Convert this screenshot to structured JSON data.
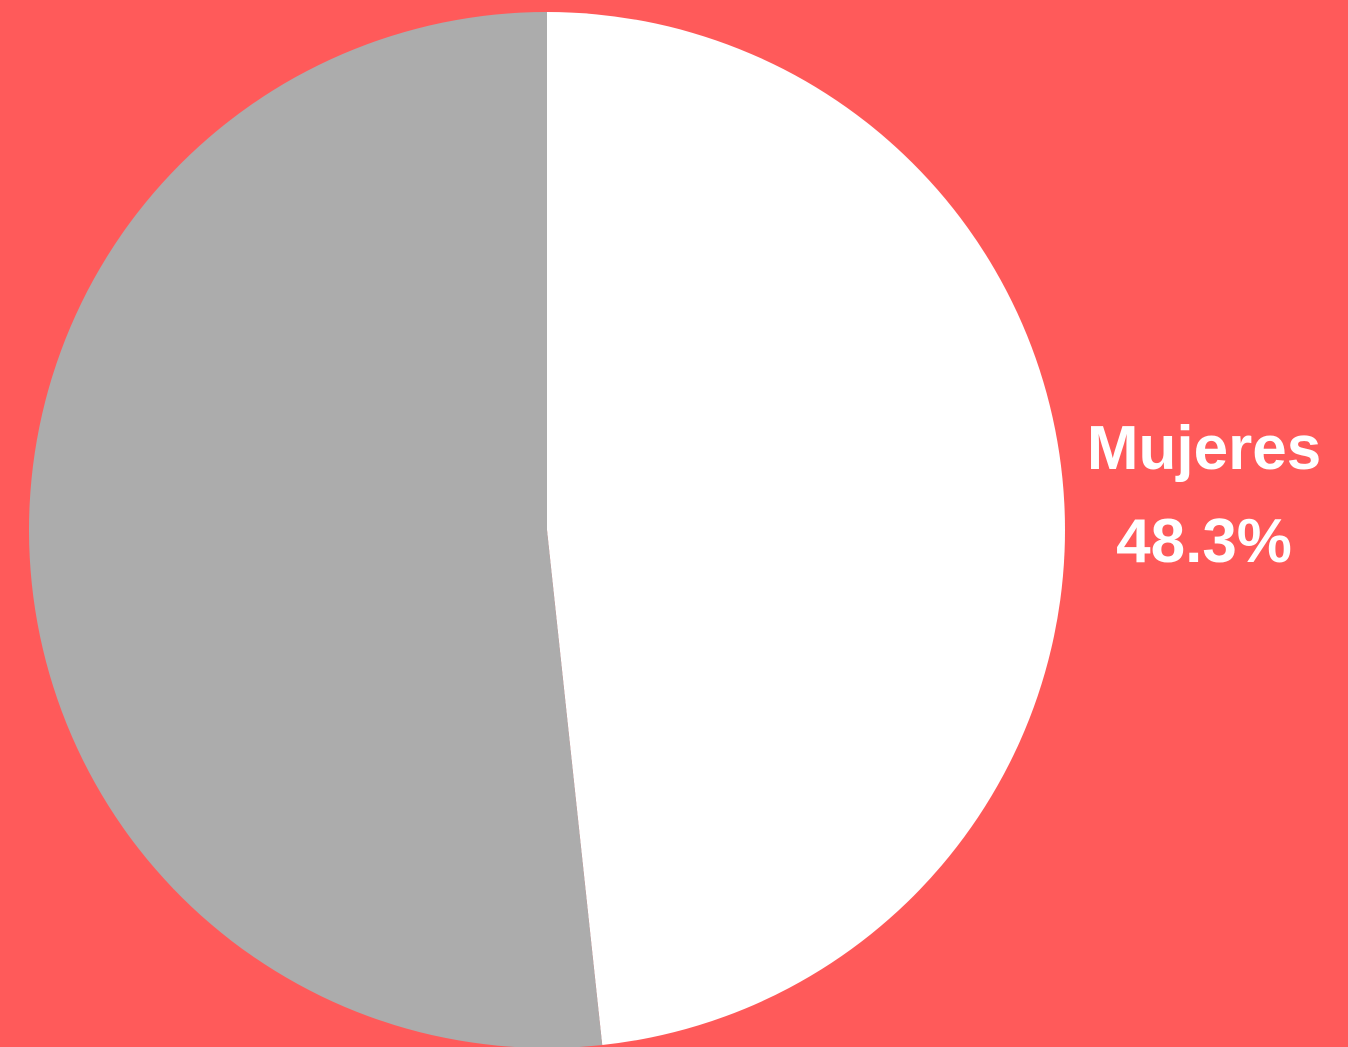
{
  "chart_data": {
    "type": "pie",
    "categories": [
      "Mujeres",
      null
    ],
    "values": [
      48.3,
      51.7
    ],
    "value_labels": [
      "48.3%",
      null
    ],
    "colors": [
      "#ffffff",
      "#acacac"
    ],
    "background": "#ff5a5a"
  }
}
